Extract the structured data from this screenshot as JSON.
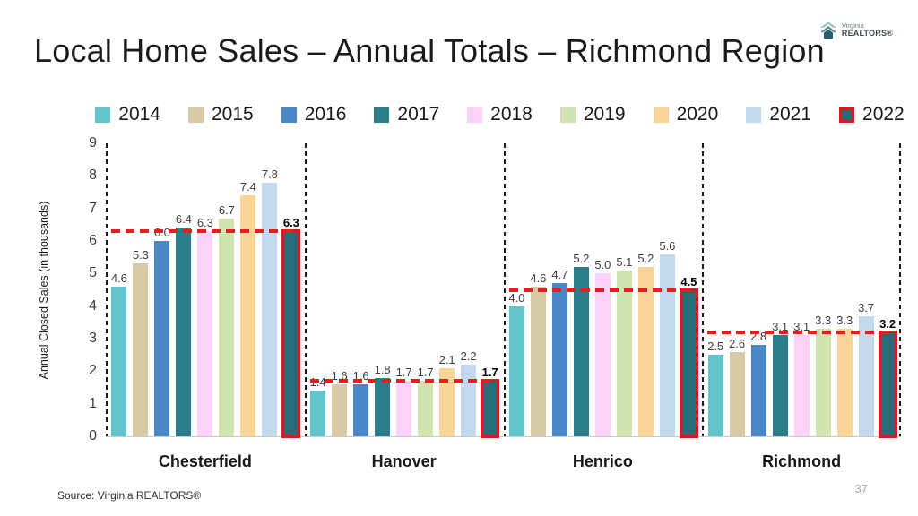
{
  "slide": {
    "title": "Local Home Sales – Annual Totals – Richmond Region",
    "source": "Source: Virginia REALTORS®",
    "page_number": "37",
    "logo": {
      "line1": "Virginia",
      "line2": "REALTORS®"
    }
  },
  "chart_data": {
    "type": "bar",
    "title": "Local Home Sales – Annual Totals – Richmond Region",
    "xlabel": "",
    "ylabel": "Annual Closed Sales (in thousands)",
    "ylim": [
      0,
      9
    ],
    "ytick_step": 1,
    "grid": false,
    "legend_position": "top",
    "categories": [
      "Chesterfield",
      "Hanover",
      "Henrico",
      "Richmond"
    ],
    "series": [
      {
        "name": "2014",
        "color": "#62c5cc",
        "values": [
          4.6,
          1.4,
          4.0,
          2.5
        ]
      },
      {
        "name": "2015",
        "color": "#d8caa4",
        "values": [
          5.3,
          1.6,
          4.6,
          2.6
        ]
      },
      {
        "name": "2016",
        "color": "#4b86c6",
        "values": [
          6.0,
          1.6,
          4.7,
          2.8
        ]
      },
      {
        "name": "2017",
        "color": "#2b7d8a",
        "values": [
          6.4,
          1.8,
          5.2,
          3.1
        ]
      },
      {
        "name": "2018",
        "color": "#fbd2f8",
        "values": [
          6.3,
          1.7,
          5.0,
          3.1
        ]
      },
      {
        "name": "2019",
        "color": "#cfe4ae",
        "values": [
          6.7,
          1.7,
          5.1,
          3.3
        ]
      },
      {
        "name": "2020",
        "color": "#fad598",
        "values": [
          7.4,
          2.1,
          5.2,
          3.3
        ]
      },
      {
        "name": "2021",
        "color": "#c2d9ee",
        "values": [
          7.8,
          2.2,
          5.6,
          3.7
        ]
      },
      {
        "name": "2022",
        "color": "#276c76",
        "values": [
          6.3,
          1.7,
          4.5,
          3.2
        ],
        "highlight": true,
        "border_color": "#c9211c"
      }
    ],
    "reference_lines": {
      "note": "red dashed line per region at the 2022 value",
      "series": "2022",
      "color": "#ec1c1c",
      "values": [
        6.3,
        1.7,
        4.5,
        3.2
      ]
    }
  }
}
